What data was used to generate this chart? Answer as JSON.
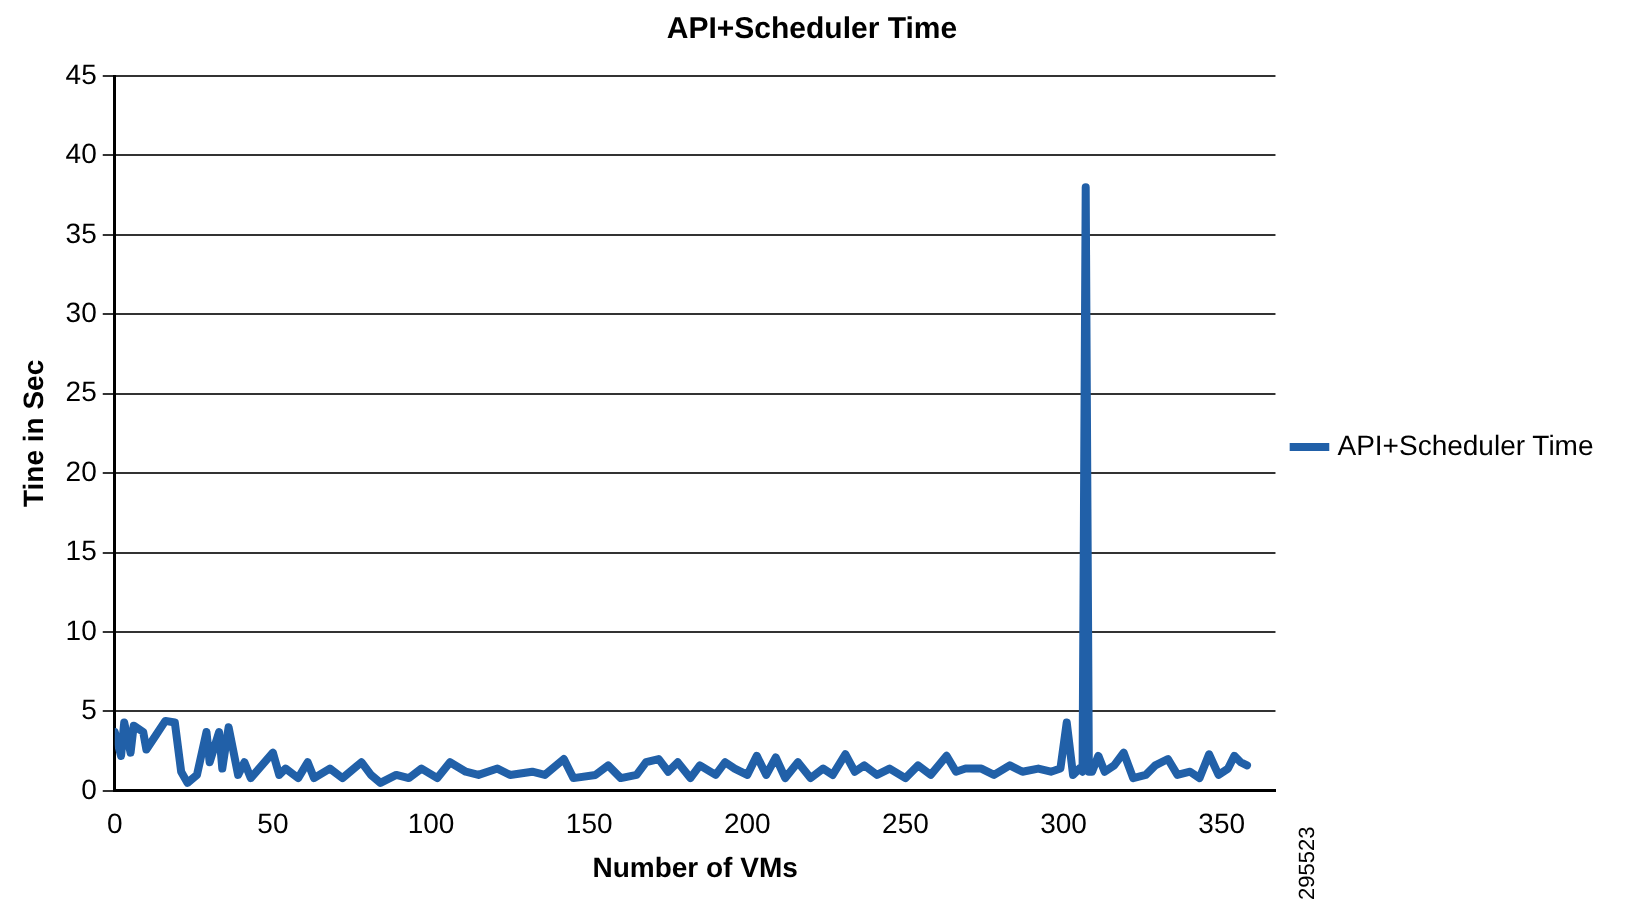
{
  "chart_data": {
    "type": "line",
    "title": "API+Scheduler Time",
    "xlabel": "Number of VMs",
    "ylabel": "Tine in Sec",
    "xlim": [
      0,
      367
    ],
    "xticks": [
      0,
      50,
      100,
      150,
      200,
      250,
      300,
      350
    ],
    "ylim": [
      0,
      45
    ],
    "yticks": [
      0,
      5,
      10,
      15,
      20,
      25,
      30,
      35,
      40,
      45
    ],
    "grid": "y",
    "legend": "right",
    "marker": "none",
    "line_style": "solid",
    "annotations": [
      "295523"
    ],
    "series": [
      {
        "name": "API+Scheduler Time",
        "color": "#2160a8",
        "x": [
          0,
          2,
          3,
          5,
          6,
          9,
          10,
          13,
          16,
          19,
          21,
          23,
          26,
          29,
          30,
          33,
          34,
          36,
          39,
          41,
          43,
          50,
          52,
          54,
          58,
          61,
          63,
          68,
          72,
          78,
          81,
          84,
          89,
          93,
          97,
          102,
          106,
          111,
          115,
          121,
          125,
          132,
          136,
          142,
          145,
          152,
          156,
          160,
          165,
          168,
          172,
          175,
          178,
          182,
          185,
          190,
          193,
          196,
          200,
          203,
          206,
          209,
          212,
          216,
          220,
          224,
          227,
          231,
          234,
          237,
          241,
          245,
          250,
          254,
          258,
          263,
          266,
          269,
          274,
          278,
          283,
          287,
          292,
          296,
          299,
          301,
          303,
          305,
          306,
          307,
          308,
          309,
          311,
          313,
          316,
          319,
          322,
          326,
          329,
          333,
          336,
          340,
          343,
          346,
          349,
          352,
          354,
          356,
          358
        ],
        "values": [
          3.7,
          2.2,
          4.3,
          2.4,
          4.1,
          3.7,
          2.6,
          3.5,
          4.4,
          4.3,
          1.2,
          0.5,
          1.0,
          3.7,
          1.8,
          3.7,
          1.4,
          4.0,
          1.0,
          1.8,
          0.8,
          2.4,
          1.0,
          1.4,
          0.8,
          1.8,
          0.8,
          1.4,
          0.8,
          1.8,
          1.0,
          0.5,
          1.0,
          0.8,
          1.4,
          0.8,
          1.8,
          1.2,
          1.0,
          1.4,
          1.0,
          1.2,
          1.0,
          2.0,
          0.8,
          1.0,
          1.6,
          0.8,
          1.0,
          1.8,
          2.0,
          1.2,
          1.8,
          0.8,
          1.6,
          1.0,
          1.8,
          1.4,
          1.0,
          2.2,
          1.0,
          2.1,
          0.8,
          1.8,
          0.8,
          1.4,
          1.0,
          2.3,
          1.2,
          1.6,
          1.0,
          1.4,
          0.8,
          1.6,
          1.0,
          2.2,
          1.2,
          1.4,
          1.4,
          1.0,
          1.6,
          1.2,
          1.4,
          1.2,
          1.4,
          4.3,
          1.0,
          1.4,
          1.2,
          38,
          1.2,
          1.2,
          2.2,
          1.2,
          1.6,
          2.4,
          0.8,
          1.0,
          1.6,
          2.0,
          1.0,
          1.2,
          0.8,
          2.3,
          1.0,
          1.4,
          2.2,
          1.8,
          1.6
        ]
      }
    ]
  }
}
